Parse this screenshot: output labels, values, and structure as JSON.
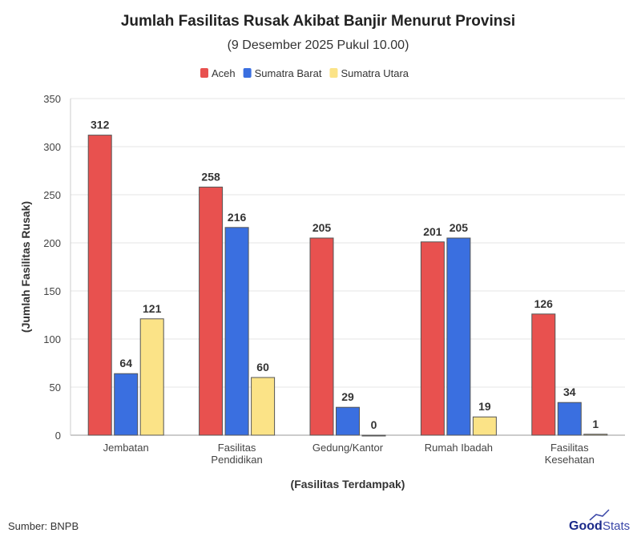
{
  "chart_data": {
    "type": "bar",
    "title": "Jumlah Fasilitas Rusak Akibat Banjir Menurut Provinsi",
    "subtitle": "(9 Desember 2025 Pukul 10.00)",
    "xlabel": "(Fasilitas Terdampak)",
    "ylabel": "(Jumlah Fasilitas Rusak)",
    "ylim": [
      0,
      350
    ],
    "yticks": [
      0,
      50,
      100,
      150,
      200,
      250,
      300,
      350
    ],
    "grid": true,
    "legend_position": "top",
    "categories": [
      [
        "Jembatan"
      ],
      [
        "Fasilitas",
        "Pendidikan"
      ],
      [
        "Gedung/Kantor"
      ],
      [
        "Rumah Ibadah"
      ],
      [
        "Fasilitas",
        "Kesehatan"
      ]
    ],
    "series": [
      {
        "name": "Aceh",
        "color": "#E8514F",
        "values": [
          312,
          258,
          205,
          201,
          126
        ]
      },
      {
        "name": "Sumatra Barat",
        "color": "#3A6FE0",
        "values": [
          64,
          216,
          29,
          205,
          34
        ]
      },
      {
        "name": "Sumatra Utara",
        "color": "#FBE387",
        "values": [
          121,
          60,
          0,
          19,
          1
        ]
      }
    ]
  },
  "footer": {
    "source": "Sumber: BNPB",
    "logo": "GoodStats"
  }
}
